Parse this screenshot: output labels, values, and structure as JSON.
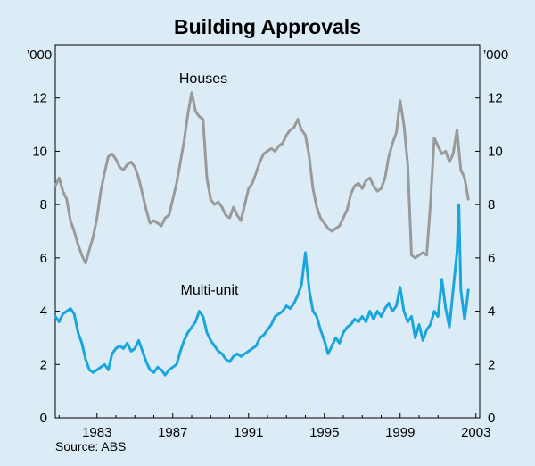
{
  "chart_data": {
    "type": "line",
    "title": "Building Approvals",
    "y_unit_left": "’000",
    "y_unit_right": "’000",
    "source": "Source: ABS",
    "ylim": [
      0,
      14
    ],
    "yticks": [
      0,
      2,
      4,
      6,
      8,
      10,
      12
    ],
    "xlim": [
      1980.8,
      2003.2
    ],
    "xticks": [
      1983,
      1987,
      1991,
      1995,
      1999,
      2003
    ],
    "series": [
      {
        "name": "Houses",
        "color": "#9a9a9a",
        "points": [
          [
            1980.8,
            8.7
          ],
          [
            1981.0,
            9.0
          ],
          [
            1981.2,
            8.5
          ],
          [
            1981.4,
            8.2
          ],
          [
            1981.6,
            7.4
          ],
          [
            1981.8,
            7.0
          ],
          [
            1982.0,
            6.5
          ],
          [
            1982.2,
            6.1
          ],
          [
            1982.4,
            5.8
          ],
          [
            1982.6,
            6.3
          ],
          [
            1982.8,
            6.8
          ],
          [
            1983.0,
            7.5
          ],
          [
            1983.2,
            8.5
          ],
          [
            1983.4,
            9.2
          ],
          [
            1983.6,
            9.8
          ],
          [
            1983.8,
            9.9
          ],
          [
            1984.0,
            9.7
          ],
          [
            1984.2,
            9.4
          ],
          [
            1984.4,
            9.3
          ],
          [
            1984.6,
            9.5
          ],
          [
            1984.8,
            9.6
          ],
          [
            1985.0,
            9.4
          ],
          [
            1985.2,
            9.0
          ],
          [
            1985.4,
            8.4
          ],
          [
            1985.6,
            7.8
          ],
          [
            1985.8,
            7.3
          ],
          [
            1986.0,
            7.4
          ],
          [
            1986.2,
            7.3
          ],
          [
            1986.4,
            7.2
          ],
          [
            1986.6,
            7.5
          ],
          [
            1986.8,
            7.6
          ],
          [
            1987.0,
            8.2
          ],
          [
            1987.2,
            8.8
          ],
          [
            1987.4,
            9.6
          ],
          [
            1987.6,
            10.4
          ],
          [
            1987.8,
            11.4
          ],
          [
            1988.0,
            12.2
          ],
          [
            1988.2,
            11.5
          ],
          [
            1988.4,
            11.3
          ],
          [
            1988.6,
            11.2
          ],
          [
            1988.8,
            9.0
          ],
          [
            1989.0,
            8.2
          ],
          [
            1989.2,
            8.0
          ],
          [
            1989.4,
            8.1
          ],
          [
            1989.6,
            7.9
          ],
          [
            1989.8,
            7.6
          ],
          [
            1990.0,
            7.5
          ],
          [
            1990.2,
            7.9
          ],
          [
            1990.4,
            7.6
          ],
          [
            1990.6,
            7.4
          ],
          [
            1990.8,
            8.0
          ],
          [
            1991.0,
            8.6
          ],
          [
            1991.2,
            8.8
          ],
          [
            1991.4,
            9.2
          ],
          [
            1991.6,
            9.6
          ],
          [
            1991.8,
            9.9
          ],
          [
            1992.0,
            10.0
          ],
          [
            1992.2,
            10.1
          ],
          [
            1992.4,
            10.0
          ],
          [
            1992.6,
            10.2
          ],
          [
            1992.8,
            10.3
          ],
          [
            1993.0,
            10.6
          ],
          [
            1993.2,
            10.8
          ],
          [
            1993.4,
            10.9
          ],
          [
            1993.6,
            11.2
          ],
          [
            1993.8,
            10.8
          ],
          [
            1994.0,
            10.6
          ],
          [
            1994.2,
            9.8
          ],
          [
            1994.4,
            8.6
          ],
          [
            1994.6,
            7.9
          ],
          [
            1994.8,
            7.5
          ],
          [
            1995.0,
            7.3
          ],
          [
            1995.2,
            7.1
          ],
          [
            1995.4,
            7.0
          ],
          [
            1995.6,
            7.1
          ],
          [
            1995.8,
            7.2
          ],
          [
            1996.0,
            7.5
          ],
          [
            1996.2,
            7.8
          ],
          [
            1996.4,
            8.4
          ],
          [
            1996.6,
            8.7
          ],
          [
            1996.8,
            8.8
          ],
          [
            1997.0,
            8.6
          ],
          [
            1997.2,
            8.9
          ],
          [
            1997.4,
            9.0
          ],
          [
            1997.6,
            8.7
          ],
          [
            1997.8,
            8.5
          ],
          [
            1998.0,
            8.6
          ],
          [
            1998.2,
            9.0
          ],
          [
            1998.4,
            9.8
          ],
          [
            1998.6,
            10.3
          ],
          [
            1998.8,
            10.7
          ],
          [
            1999.0,
            11.9
          ],
          [
            1999.2,
            11.0
          ],
          [
            1999.4,
            9.5
          ],
          [
            1999.6,
            6.1
          ],
          [
            1999.8,
            6.0
          ],
          [
            2000.0,
            6.1
          ],
          [
            2000.2,
            6.2
          ],
          [
            2000.4,
            6.1
          ],
          [
            2000.6,
            8.0
          ],
          [
            2000.8,
            10.5
          ],
          [
            2001.0,
            10.2
          ],
          [
            2001.2,
            9.9
          ],
          [
            2001.4,
            10.0
          ],
          [
            2001.6,
            9.6
          ],
          [
            2001.8,
            9.9
          ],
          [
            2002.0,
            10.8
          ],
          [
            2002.2,
            9.3
          ],
          [
            2002.4,
            9.0
          ],
          [
            2002.6,
            8.2
          ]
        ]
      },
      {
        "name": "Multi-unit",
        "color": "#1aa6dc",
        "points": [
          [
            1980.8,
            3.8
          ],
          [
            1981.0,
            3.6
          ],
          [
            1981.2,
            3.9
          ],
          [
            1981.4,
            4.0
          ],
          [
            1981.6,
            4.1
          ],
          [
            1981.8,
            3.9
          ],
          [
            1982.0,
            3.2
          ],
          [
            1982.2,
            2.8
          ],
          [
            1982.4,
            2.2
          ],
          [
            1982.6,
            1.8
          ],
          [
            1982.8,
            1.7
          ],
          [
            1983.0,
            1.8
          ],
          [
            1983.2,
            1.9
          ],
          [
            1983.4,
            2.0
          ],
          [
            1983.6,
            1.8
          ],
          [
            1983.8,
            2.4
          ],
          [
            1984.0,
            2.6
          ],
          [
            1984.2,
            2.7
          ],
          [
            1984.4,
            2.6
          ],
          [
            1984.6,
            2.8
          ],
          [
            1984.8,
            2.5
          ],
          [
            1985.0,
            2.6
          ],
          [
            1985.2,
            2.9
          ],
          [
            1985.4,
            2.5
          ],
          [
            1985.6,
            2.1
          ],
          [
            1985.8,
            1.8
          ],
          [
            1986.0,
            1.7
          ],
          [
            1986.2,
            1.9
          ],
          [
            1986.4,
            1.8
          ],
          [
            1986.6,
            1.6
          ],
          [
            1986.8,
            1.8
          ],
          [
            1987.0,
            1.9
          ],
          [
            1987.2,
            2.0
          ],
          [
            1987.4,
            2.5
          ],
          [
            1987.6,
            2.9
          ],
          [
            1987.8,
            3.2
          ],
          [
            1988.0,
            3.4
          ],
          [
            1988.2,
            3.6
          ],
          [
            1988.4,
            4.0
          ],
          [
            1988.6,
            3.8
          ],
          [
            1988.8,
            3.2
          ],
          [
            1989.0,
            2.9
          ],
          [
            1989.2,
            2.7
          ],
          [
            1989.4,
            2.5
          ],
          [
            1989.6,
            2.4
          ],
          [
            1989.8,
            2.2
          ],
          [
            1990.0,
            2.1
          ],
          [
            1990.2,
            2.3
          ],
          [
            1990.4,
            2.4
          ],
          [
            1990.6,
            2.3
          ],
          [
            1990.8,
            2.4
          ],
          [
            1991.0,
            2.5
          ],
          [
            1991.2,
            2.6
          ],
          [
            1991.4,
            2.7
          ],
          [
            1991.6,
            3.0
          ],
          [
            1991.8,
            3.1
          ],
          [
            1992.0,
            3.3
          ],
          [
            1992.2,
            3.5
          ],
          [
            1992.4,
            3.8
          ],
          [
            1992.6,
            3.9
          ],
          [
            1992.8,
            4.0
          ],
          [
            1993.0,
            4.2
          ],
          [
            1993.2,
            4.1
          ],
          [
            1993.4,
            4.3
          ],
          [
            1993.6,
            4.6
          ],
          [
            1993.8,
            5.0
          ],
          [
            1994.0,
            6.2
          ],
          [
            1994.2,
            4.8
          ],
          [
            1994.4,
            4.0
          ],
          [
            1994.6,
            3.8
          ],
          [
            1994.8,
            3.3
          ],
          [
            1995.0,
            2.9
          ],
          [
            1995.2,
            2.4
          ],
          [
            1995.4,
            2.7
          ],
          [
            1995.6,
            3.0
          ],
          [
            1995.8,
            2.8
          ],
          [
            1996.0,
            3.2
          ],
          [
            1996.2,
            3.4
          ],
          [
            1996.4,
            3.5
          ],
          [
            1996.6,
            3.7
          ],
          [
            1996.8,
            3.6
          ],
          [
            1997.0,
            3.8
          ],
          [
            1997.2,
            3.6
          ],
          [
            1997.4,
            4.0
          ],
          [
            1997.6,
            3.7
          ],
          [
            1997.8,
            4.0
          ],
          [
            1998.0,
            3.8
          ],
          [
            1998.2,
            4.1
          ],
          [
            1998.4,
            4.3
          ],
          [
            1998.6,
            4.0
          ],
          [
            1998.8,
            4.2
          ],
          [
            1999.0,
            4.9
          ],
          [
            1999.2,
            4.0
          ],
          [
            1999.4,
            3.6
          ],
          [
            1999.6,
            3.8
          ],
          [
            1999.8,
            3.0
          ],
          [
            2000.0,
            3.5
          ],
          [
            2000.2,
            2.9
          ],
          [
            2000.4,
            3.3
          ],
          [
            2000.6,
            3.5
          ],
          [
            2000.8,
            4.0
          ],
          [
            2001.0,
            3.8
          ],
          [
            2001.2,
            5.2
          ],
          [
            2001.4,
            4.1
          ],
          [
            2001.6,
            3.4
          ],
          [
            2001.8,
            4.8
          ],
          [
            2002.0,
            6.2
          ],
          [
            2002.1,
            8.0
          ],
          [
            2002.2,
            4.8
          ],
          [
            2002.4,
            3.7
          ],
          [
            2002.5,
            4.2
          ],
          [
            2002.6,
            4.8
          ]
        ]
      }
    ]
  }
}
